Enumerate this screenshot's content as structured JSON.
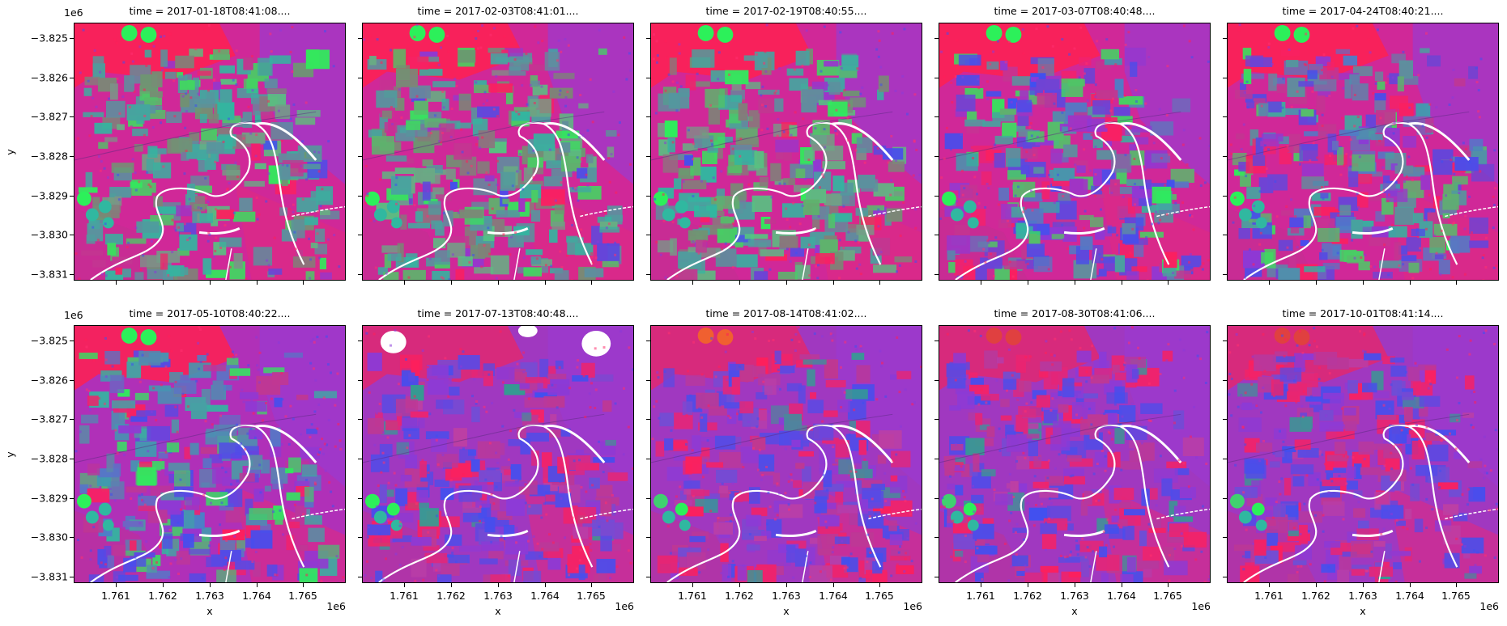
{
  "chart_data": {
    "type": "heatmap",
    "subtype": "faceted RGB false-color image grid (2 rows x 5 columns)",
    "title": "",
    "xlabel": "x",
    "ylabel": "y",
    "x_offset_label": "1e6",
    "y_offset_label": "1e6",
    "x_ticks": [
      "1.761",
      "1.762",
      "1.763",
      "1.764",
      "1.765"
    ],
    "y_ticks": [
      "−3.825",
      "−3.826",
      "−3.827",
      "−3.828",
      "−3.829",
      "−3.830",
      "−3.831"
    ],
    "xlim": [
      1.7602,
      1.7659
    ],
    "ylim": [
      -3.8312,
      -3.8246
    ],
    "grid": false,
    "legend": null,
    "panels": [
      {
        "title": "time = 2017-01-18T08:41:08....",
        "row": 0,
        "col": 0,
        "dominant": "green fields"
      },
      {
        "title": "time = 2017-02-03T08:41:01....",
        "row": 0,
        "col": 1,
        "dominant": "green fields"
      },
      {
        "title": "time = 2017-02-19T08:40:55....",
        "row": 0,
        "col": 2,
        "dominant": "green fields"
      },
      {
        "title": "time = 2017-03-07T08:40:48....",
        "row": 0,
        "col": 3,
        "dominant": "teal/green fields"
      },
      {
        "title": "time = 2017-04-24T08:40:21....",
        "row": 0,
        "col": 4,
        "dominant": "teal/blue fields"
      },
      {
        "title": "time = 2017-05-10T08:40:22....",
        "row": 1,
        "col": 0,
        "dominant": "teal/blue fields"
      },
      {
        "title": "time = 2017-07-13T08:40:48....",
        "row": 1,
        "col": 1,
        "dominant": "magenta/blue, white masked patches at top"
      },
      {
        "title": "time = 2017-08-14T08:41:02....",
        "row": 1,
        "col": 2,
        "dominant": "magenta/red"
      },
      {
        "title": "time = 2017-08-30T08:41:06....",
        "row": 1,
        "col": 3,
        "dominant": "magenta/red"
      },
      {
        "title": "time = 2017-10-01T08:41:14....",
        "row": 1,
        "col": 4,
        "dominant": "red/magenta"
      }
    ]
  },
  "colors": {
    "red": "#ff1f5a",
    "magenta": "#b030c8",
    "purple": "#8a3ad8",
    "green": "#2cf05a",
    "teal": "#30b8a0",
    "blue": "#4050f0",
    "water_mask": "#ffffff"
  }
}
